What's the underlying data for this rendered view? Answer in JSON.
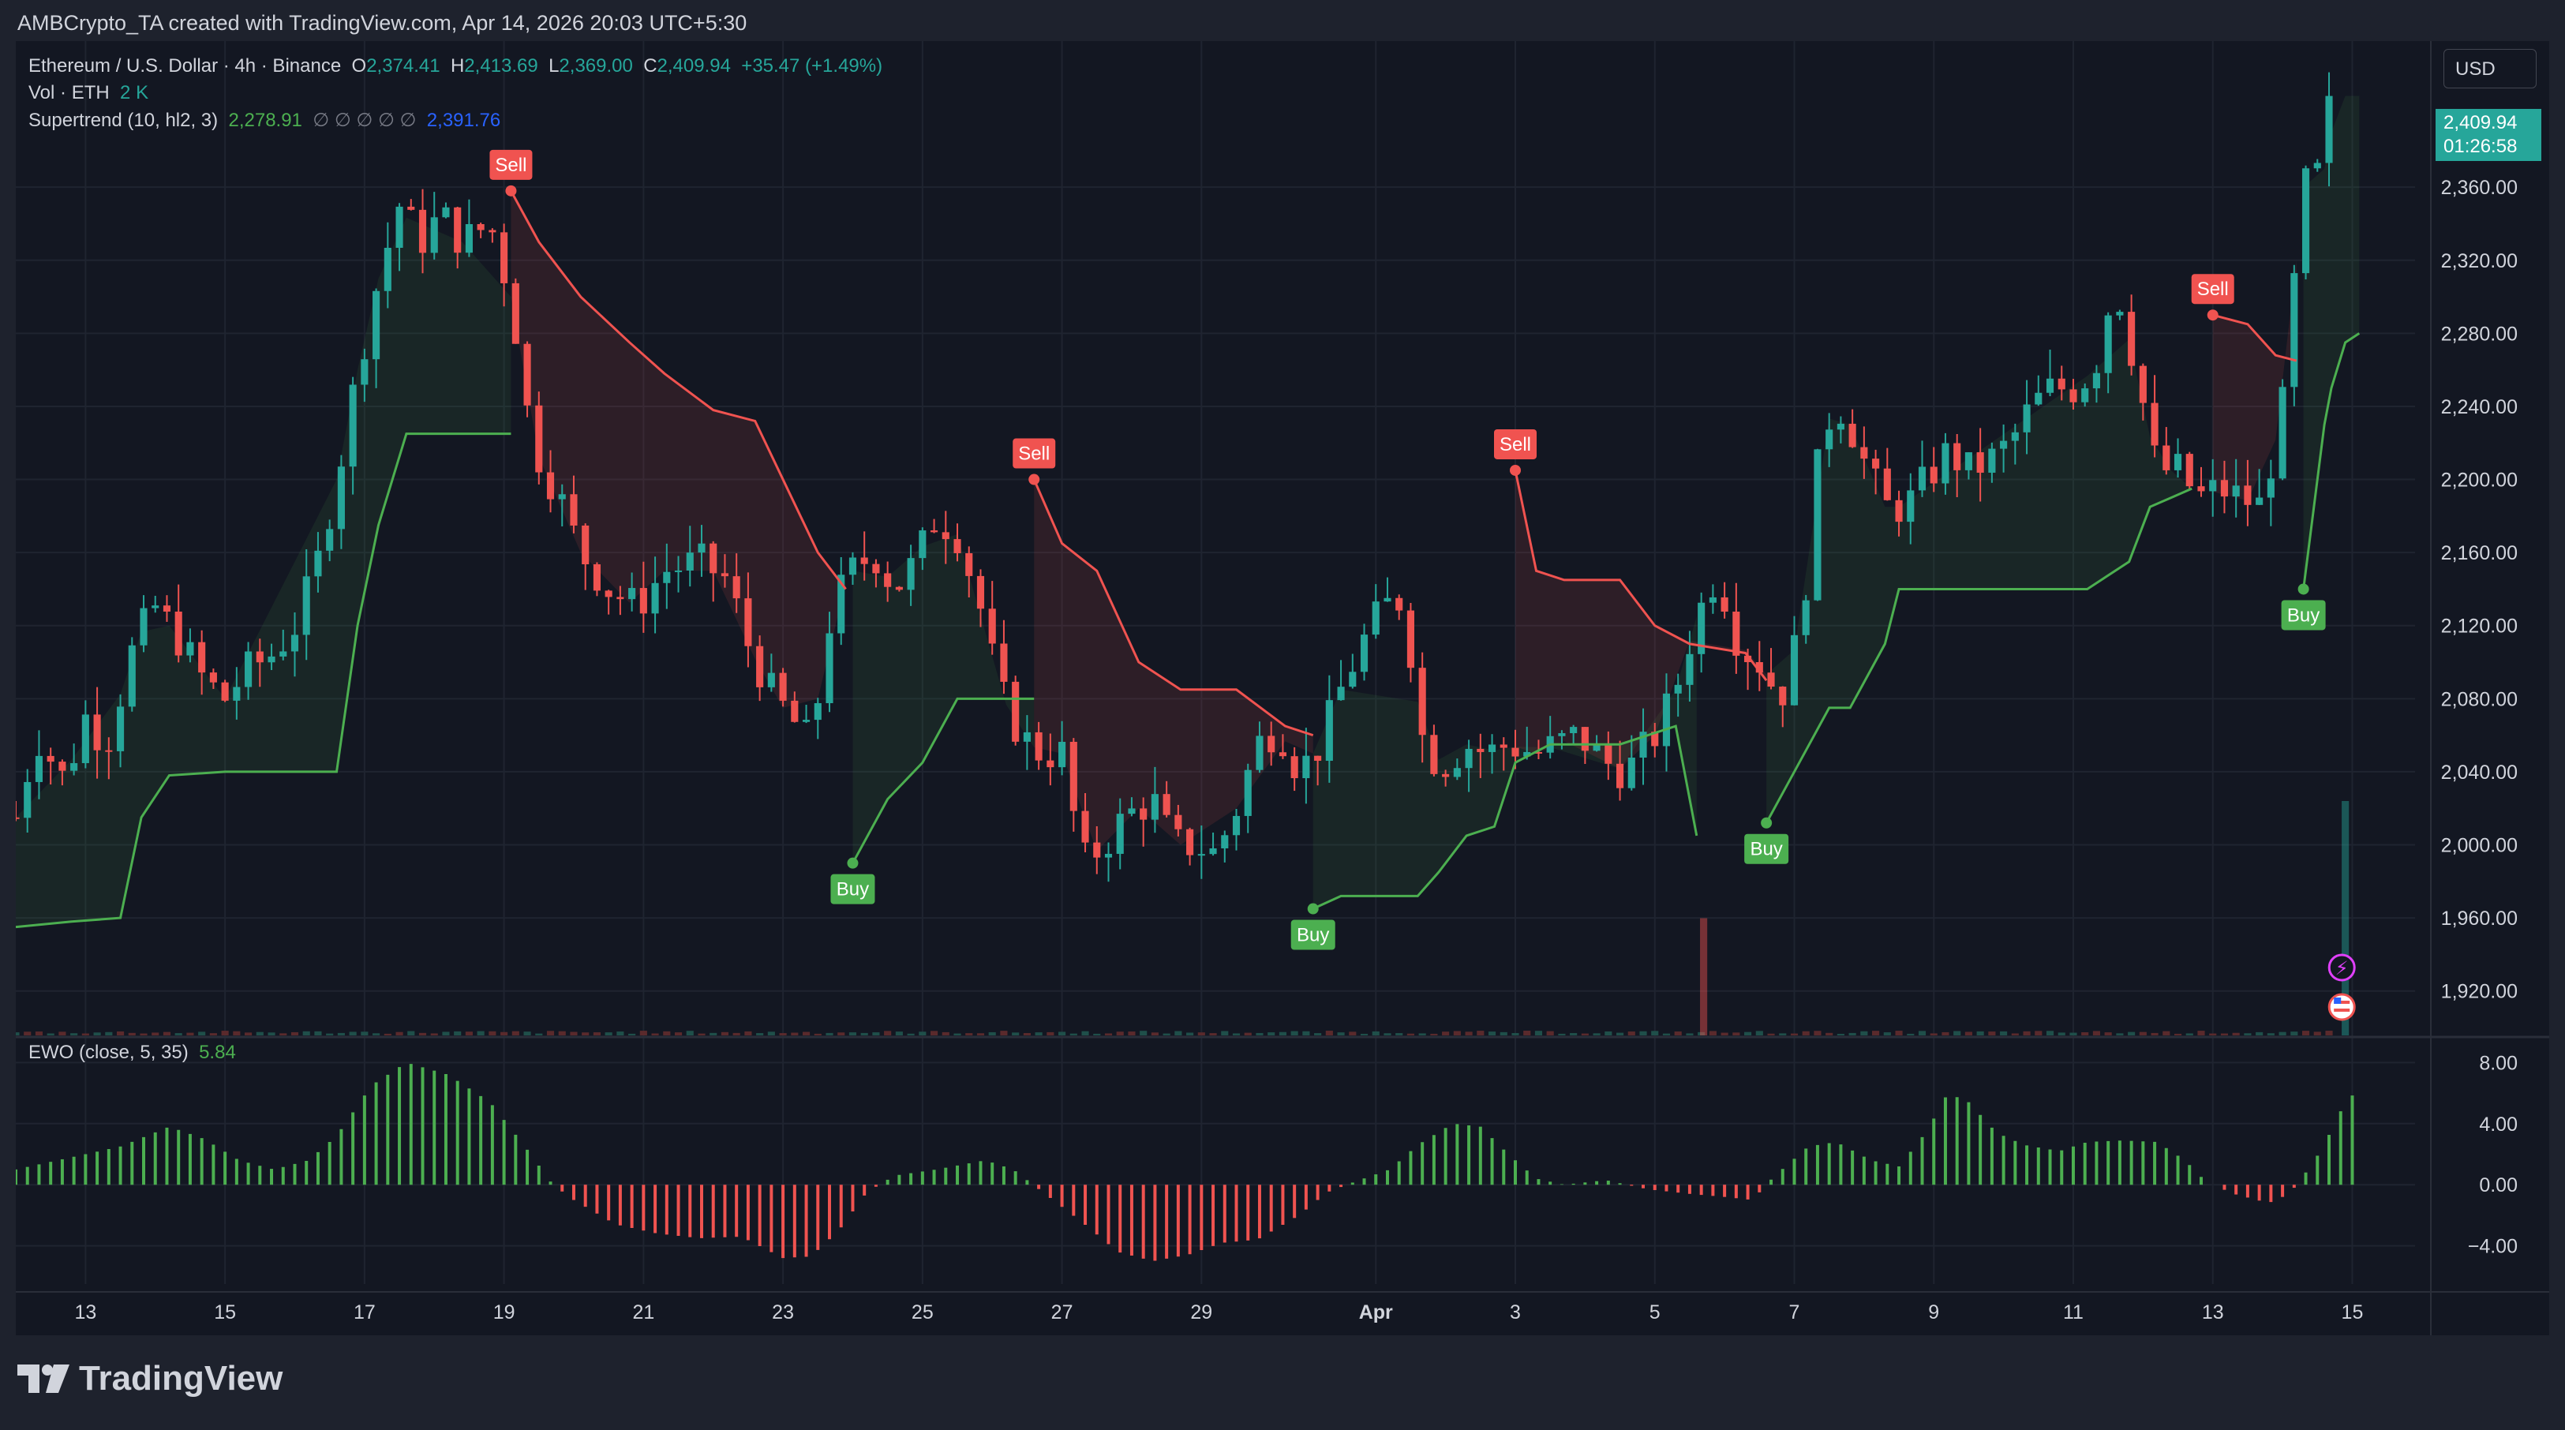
{
  "header": {
    "attribution": "AMBCrypto_TA created with TradingView.com, Apr 14, 2026 20:03 UTC+5:30"
  },
  "legend": {
    "symbol": "Ethereum / U.S. Dollar · 4h · Binance",
    "open_label": "O",
    "open": "2,374.41",
    "high_label": "H",
    "high": "2,413.69",
    "low_label": "L",
    "low": "2,369.00",
    "close_label": "C",
    "close": "2,409.94",
    "change": "+35.47 (+1.49%)",
    "vol_label": "Vol · ETH",
    "vol_value": "2 K",
    "supertrend_label": "Supertrend (10, hl2, 3)",
    "supertrend_up": "2,278.91",
    "supertrend_na": "∅ ∅ ∅ ∅ ∅",
    "supertrend_dn": "2,391.76",
    "ewo_label": "EWO (close, 5, 35)",
    "ewo_value": "5.84"
  },
  "currency_button": "USD",
  "price_tag": {
    "price": "2,409.94",
    "countdown": "01:26:58"
  },
  "brand": "TradingView",
  "colors": {
    "bull": "#26a69a",
    "bear": "#ef5350",
    "st_up": "#4caf50",
    "st_dn": "#f05350",
    "ewo_pos": "#4caf50",
    "ewo_neg": "#f05350",
    "grid": "#1f2430",
    "text": "#d1d4dc"
  },
  "chart_data": [
    {
      "type": "candlestick",
      "title": "Ethereum / U.S. Dollar · 4h · Binance",
      "y_ticks": [
        1920,
        1960,
        2000,
        2040,
        2080,
        2120,
        2160,
        2200,
        2240,
        2280,
        2320,
        2360
      ],
      "y_tick_labels": [
        "1,920.00",
        "1,960.00",
        "2,000.00",
        "2,040.00",
        "2,080.00",
        "2,120.00",
        "2,160.00",
        "2,200.00",
        "2,240.00",
        "2,280.00",
        "2,320.00",
        "2,360.00"
      ],
      "ylim": [
        1900,
        2440
      ],
      "x_ticks": [
        13,
        15,
        17,
        19,
        21,
        23,
        25,
        27,
        29,
        "Apr",
        3,
        5,
        7,
        9,
        11,
        13,
        15
      ],
      "x_tick_labels": [
        "13",
        "15",
        "17",
        "19",
        "21",
        "23",
        "25",
        "27",
        "29",
        "Apr",
        "3",
        "5",
        "7",
        "9",
        "11",
        "13",
        "15"
      ],
      "x_tick_day_index": [
        1,
        3,
        5,
        7,
        9,
        11,
        13,
        15,
        17,
        19.5,
        21.5,
        23.5,
        25.5,
        27.5,
        29.5,
        31.5,
        33.5
      ],
      "x_start_day_index": 0,
      "x_end_day_index": 34.4,
      "close_path_keypoints": [
        [
          0.0,
          2015
        ],
        [
          0.3,
          2060
        ],
        [
          0.7,
          2035
        ],
        [
          1.0,
          2070
        ],
        [
          1.3,
          2055
        ],
        [
          1.7,
          2110
        ],
        [
          2.0,
          2130
        ],
        [
          2.3,
          2115
        ],
        [
          2.7,
          2090
        ],
        [
          3.0,
          2080
        ],
        [
          3.3,
          2095
        ],
        [
          3.7,
          2105
        ],
        [
          4.0,
          2120
        ],
        [
          4.3,
          2150
        ],
        [
          4.6,
          2200
        ],
        [
          4.9,
          2260
        ],
        [
          5.2,
          2310
        ],
        [
          5.5,
          2350
        ],
        [
          5.8,
          2330
        ],
        [
          6.1,
          2345
        ],
        [
          6.4,
          2330
        ],
        [
          6.8,
          2340
        ],
        [
          7.1,
          2300
        ],
        [
          7.4,
          2220
        ],
        [
          7.8,
          2190
        ],
        [
          8.1,
          2160
        ],
        [
          8.5,
          2140
        ],
        [
          8.9,
          2130
        ],
        [
          9.3,
          2150
        ],
        [
          9.8,
          2155
        ],
        [
          10.2,
          2145
        ],
        [
          10.5,
          2110
        ],
        [
          10.8,
          2085
        ],
        [
          11.1,
          2070
        ],
        [
          11.4,
          2055
        ],
        [
          11.7,
          2130
        ],
        [
          12.0,
          2150
        ],
        [
          12.3,
          2160
        ],
        [
          12.6,
          2140
        ],
        [
          12.9,
          2155
        ],
        [
          13.2,
          2180
        ],
        [
          13.5,
          2170
        ],
        [
          13.8,
          2135
        ],
        [
          14.1,
          2085
        ],
        [
          14.4,
          2060
        ],
        [
          14.7,
          2050
        ],
        [
          15.0,
          2050
        ],
        [
          15.3,
          1990
        ],
        [
          15.6,
          2000
        ],
        [
          15.9,
          2015
        ],
        [
          16.3,
          2025
        ],
        [
          16.6,
          2000
        ],
        [
          16.9,
          2000
        ],
        [
          17.2,
          1995
        ],
        [
          17.5,
          2020
        ],
        [
          17.8,
          2055
        ],
        [
          18.1,
          2065
        ],
        [
          18.4,
          2040
        ],
        [
          18.7,
          2055
        ],
        [
          19.0,
          2085
        ],
        [
          19.3,
          2110
        ],
        [
          19.6,
          2130
        ],
        [
          19.9,
          2135
        ],
        [
          20.2,
          2050
        ],
        [
          20.5,
          2045
        ],
        [
          20.8,
          2055
        ],
        [
          21.1,
          2050
        ],
        [
          21.4,
          2055
        ],
        [
          21.8,
          2050
        ],
        [
          22.1,
          2055
        ],
        [
          22.4,
          2060
        ],
        [
          22.8,
          2045
        ],
        [
          23.1,
          2040
        ],
        [
          23.5,
          2060
        ],
        [
          23.8,
          2085
        ],
        [
          24.1,
          2125
        ],
        [
          24.4,
          2150
        ],
        [
          24.7,
          2110
        ],
        [
          25.0,
          2100
        ],
        [
          25.3,
          2080
        ],
        [
          25.6,
          2120
        ],
        [
          25.9,
          2230
        ],
        [
          26.2,
          2240
        ],
        [
          26.5,
          2210
        ],
        [
          26.8,
          2185
        ],
        [
          27.1,
          2185
        ],
        [
          27.4,
          2200
        ],
        [
          27.7,
          2215
        ],
        [
          28.0,
          2205
        ],
        [
          28.3,
          2210
        ],
        [
          28.6,
          2220
        ],
        [
          28.9,
          2240
        ],
        [
          29.2,
          2250
        ],
        [
          29.5,
          2250
        ],
        [
          29.8,
          2260
        ],
        [
          30.1,
          2310
        ],
        [
          30.4,
          2260
        ],
        [
          30.7,
          2205
        ],
        [
          31.0,
          2205
        ],
        [
          31.3,
          2190
        ],
        [
          31.6,
          2195
        ],
        [
          31.9,
          2190
        ],
        [
          32.2,
          2185
        ],
        [
          32.5,
          2240
        ],
        [
          32.8,
          2360
        ],
        [
          33.1,
          2370
        ],
        [
          33.3,
          2410
        ]
      ],
      "supertrend": {
        "segments": [
          {
            "dir": "up",
            "points": [
              [
                0.0,
                1955
              ],
              [
                0.8,
                1958
              ],
              [
                1.5,
                1960
              ],
              [
                1.8,
                2015
              ],
              [
                2.2,
                2038
              ],
              [
                3.0,
                2040
              ],
              [
                4.6,
                2040
              ],
              [
                4.9,
                2120
              ],
              [
                5.2,
                2175
              ],
              [
                5.6,
                2225
              ],
              [
                6.4,
                2225
              ],
              [
                7.1,
                2225
              ]
            ]
          },
          {
            "dir": "down",
            "points": [
              [
                7.1,
                2358
              ],
              [
                7.5,
                2330
              ],
              [
                8.1,
                2300
              ],
              [
                8.8,
                2275
              ],
              [
                9.3,
                2258
              ],
              [
                10.0,
                2238
              ],
              [
                10.6,
                2232
              ],
              [
                11.0,
                2200
              ],
              [
                11.5,
                2160
              ],
              [
                11.9,
                2140
              ]
            ]
          },
          {
            "dir": "up",
            "points": [
              [
                12.0,
                1990
              ],
              [
                12.5,
                2025
              ],
              [
                13.0,
                2045
              ],
              [
                13.5,
                2080
              ],
              [
                14.2,
                2080
              ],
              [
                14.6,
                2080
              ]
            ]
          },
          {
            "dir": "down",
            "points": [
              [
                14.6,
                2200
              ],
              [
                15.0,
                2165
              ],
              [
                15.5,
                2150
              ],
              [
                16.1,
                2100
              ],
              [
                16.7,
                2085
              ],
              [
                17.5,
                2085
              ],
              [
                18.2,
                2065
              ],
              [
                18.6,
                2060
              ]
            ]
          },
          {
            "dir": "up",
            "points": [
              [
                18.6,
                1965
              ],
              [
                19.0,
                1972
              ],
              [
                20.1,
                1972
              ],
              [
                20.4,
                1985
              ],
              [
                20.8,
                2005
              ],
              [
                21.2,
                2010
              ],
              [
                21.5,
                2045
              ],
              [
                22.0,
                2055
              ],
              [
                23.0,
                2055
              ],
              [
                23.8,
                2065
              ],
              [
                24.1,
                2005
              ]
            ]
          },
          {
            "dir": "down",
            "points": [
              [
                21.5,
                2205
              ],
              [
                21.8,
                2150
              ],
              [
                22.2,
                2145
              ],
              [
                23.0,
                2145
              ],
              [
                23.5,
                2120
              ],
              [
                24.0,
                2110
              ],
              [
                24.8,
                2105
              ],
              [
                25.1,
                2090
              ]
            ]
          },
          {
            "dir": "up",
            "points": [
              [
                25.1,
                2012
              ],
              [
                25.5,
                2040
              ],
              [
                26.0,
                2075
              ],
              [
                26.3,
                2075
              ],
              [
                26.8,
                2110
              ],
              [
                27.0,
                2140
              ],
              [
                29.7,
                2140
              ],
              [
                30.3,
                2155
              ],
              [
                30.6,
                2185
              ],
              [
                30.9,
                2190
              ],
              [
                31.2,
                2195
              ]
            ]
          },
          {
            "dir": "down",
            "points": [
              [
                31.5,
                2290
              ],
              [
                32.0,
                2285
              ],
              [
                32.4,
                2268
              ],
              [
                32.7,
                2265
              ]
            ]
          },
          {
            "dir": "up",
            "points": [
              [
                32.8,
                2140
              ],
              [
                33.1,
                2230
              ],
              [
                33.2,
                2250
              ],
              [
                33.4,
                2275
              ],
              [
                33.6,
                2280
              ]
            ]
          }
        ],
        "signals": [
          {
            "type": "Sell",
            "day": 7.1,
            "price": 2358
          },
          {
            "type": "Buy",
            "day": 12.0,
            "price": 1990
          },
          {
            "type": "Sell",
            "day": 14.6,
            "price": 2200
          },
          {
            "type": "Buy",
            "day": 18.6,
            "price": 1965
          },
          {
            "type": "Sell",
            "day": 21.5,
            "price": 2205
          },
          {
            "type": "Buy",
            "day": 25.1,
            "price": 2012
          },
          {
            "type": "Sell",
            "day": 31.5,
            "price": 2290
          },
          {
            "type": "Buy",
            "day": 32.8,
            "price": 2140
          }
        ]
      },
      "volume_highlights": [
        {
          "day": 24.2,
          "relative": 0.45,
          "dir": "down"
        },
        {
          "day": 33.4,
          "relative": 0.9,
          "dir": "up"
        }
      ]
    },
    {
      "type": "bar",
      "title": "EWO (close, 5, 35)",
      "y_ticks": [
        -4,
        0,
        4,
        8
      ],
      "y_tick_labels": [
        "−4.00",
        "0.00",
        "4.00",
        "8.00"
      ],
      "ylim": [
        -6.5,
        9
      ],
      "values_keypoints": [
        [
          0.0,
          1.0
        ],
        [
          0.8,
          1.8
        ],
        [
          1.5,
          2.5
        ],
        [
          2.2,
          3.8
        ],
        [
          2.7,
          3.0
        ],
        [
          3.2,
          1.6
        ],
        [
          3.7,
          1.0
        ],
        [
          4.2,
          1.6
        ],
        [
          4.6,
          3.2
        ],
        [
          5.1,
          6.5
        ],
        [
          5.6,
          8.0
        ],
        [
          6.2,
          7.2
        ],
        [
          6.8,
          5.4
        ],
        [
          7.3,
          2.5
        ],
        [
          7.7,
          0.0
        ],
        [
          8.0,
          -1.0
        ],
        [
          8.6,
          -2.6
        ],
        [
          9.2,
          -3.2
        ],
        [
          9.8,
          -3.5
        ],
        [
          10.4,
          -3.4
        ],
        [
          11.0,
          -4.8
        ],
        [
          11.4,
          -4.7
        ],
        [
          11.8,
          -3.0
        ],
        [
          12.2,
          -0.5
        ],
        [
          12.6,
          0.6
        ],
        [
          13.2,
          1.0
        ],
        [
          13.9,
          1.6
        ],
        [
          14.3,
          1.0
        ],
        [
          14.7,
          -0.4
        ],
        [
          15.3,
          -2.5
        ],
        [
          15.8,
          -4.4
        ],
        [
          16.3,
          -5.0
        ],
        [
          16.8,
          -4.6
        ],
        [
          17.3,
          -3.8
        ],
        [
          17.8,
          -3.6
        ],
        [
          18.4,
          -2.0
        ],
        [
          18.8,
          -0.5
        ],
        [
          19.2,
          0.2
        ],
        [
          19.7,
          1.0
        ],
        [
          20.1,
          2.6
        ],
        [
          20.6,
          4.0
        ],
        [
          21.0,
          3.8
        ],
        [
          21.4,
          2.0
        ],
        [
          21.8,
          0.4
        ],
        [
          22.2,
          0.0
        ],
        [
          22.8,
          0.3
        ],
        [
          23.4,
          -0.3
        ],
        [
          24.0,
          -0.6
        ],
        [
          24.5,
          -0.8
        ],
        [
          24.9,
          -1.0
        ],
        [
          25.2,
          0.5
        ],
        [
          25.7,
          2.5
        ],
        [
          26.1,
          2.8
        ],
        [
          26.6,
          1.6
        ],
        [
          27.0,
          1.2
        ],
        [
          27.4,
          3.5
        ],
        [
          27.7,
          6.0
        ],
        [
          28.0,
          5.4
        ],
        [
          28.4,
          3.4
        ],
        [
          28.8,
          2.6
        ],
        [
          29.3,
          2.2
        ],
        [
          29.7,
          2.8
        ],
        [
          30.2,
          2.9
        ],
        [
          30.7,
          2.8
        ],
        [
          31.1,
          1.6
        ],
        [
          31.4,
          0.2
        ],
        [
          31.8,
          -0.6
        ],
        [
          32.3,
          -1.2
        ],
        [
          32.6,
          -0.6
        ],
        [
          32.9,
          1.2
        ],
        [
          33.1,
          2.6
        ],
        [
          33.3,
          4.6
        ],
        [
          33.5,
          5.84
        ]
      ]
    }
  ]
}
